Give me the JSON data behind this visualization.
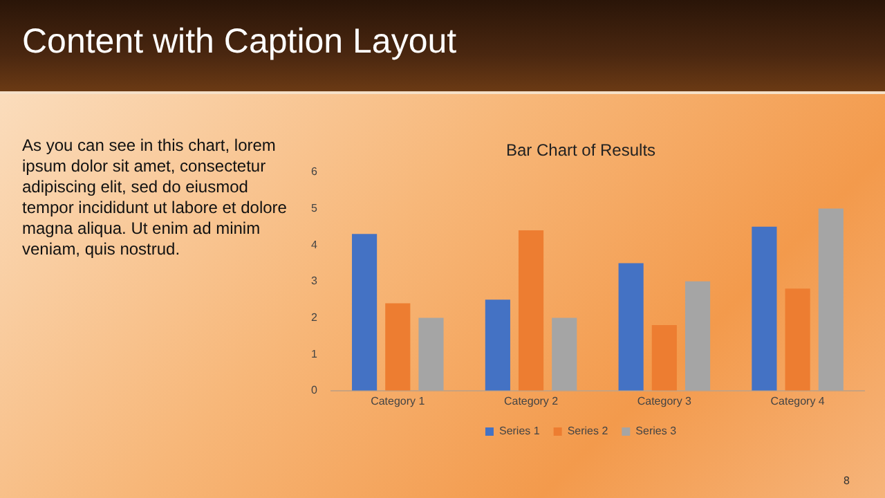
{
  "chart_data": {
    "type": "bar",
    "title": "Content with Caption Layout",
    "subtitle": "Bar Chart of Results",
    "annotations": [
      "As you can see in this chart, lorem ipsum dolor sit amet, consectetur adipiscing elit, sed do eiusmod tempor incididunt ut labore et dolore magna aliqua. Ut enim ad minim veniam, quis nostrud.",
      "8"
    ],
    "categories": [
      "Category 1",
      "Category 2",
      "Category 3",
      "Category 4"
    ],
    "series": [
      {
        "name": "Series 1",
        "color": "#4472c4",
        "values": [
          4.3,
          2.5,
          3.5,
          4.5
        ]
      },
      {
        "name": "Series 2",
        "color": "#ed7d31",
        "values": [
          2.4,
          4.4,
          1.8,
          2.8
        ]
      },
      {
        "name": "Series 3",
        "color": "#a5a5a5",
        "values": [
          2,
          2,
          3,
          5
        ]
      }
    ],
    "ylim": [
      0,
      6
    ],
    "yticks": [
      0,
      1,
      2,
      3,
      4,
      5,
      6
    ],
    "grid": false,
    "legend": "bottom"
  }
}
